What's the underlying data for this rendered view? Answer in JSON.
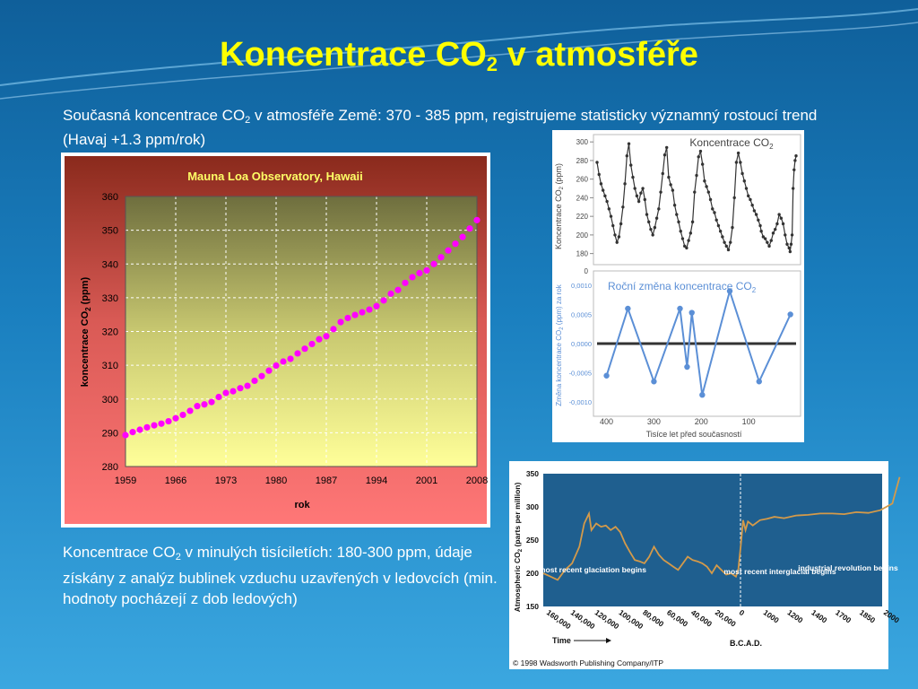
{
  "slide": {
    "title_main": "Koncentrace CO",
    "title_sub": "2",
    "title_rest": " v atmosféře",
    "intro_a": "Současná koncentrace CO",
    "intro_sub": "2",
    "intro_b": " v atmosféře Země: 370 - 385 ppm, registrujeme statisticky významný rostoucí trend (Havaj +1.3 ppm/rok)",
    "caption_a": "Koncentrace CO",
    "caption_sub": "2",
    "caption_b": " v minulých tisíciletích: 180-300 ppm, údaje získány z analýz bublinek vzduchu uzavřených v ledovcích (min. hodnoty pocházejí z dob ledových)"
  },
  "colors": {
    "title": "#ffff00",
    "mauna_points": "#ff00ff",
    "vostok_line": "#333333",
    "rate_line": "#5b8fd6",
    "historic_line": "#d49a4a",
    "historic_bg": "#1f5f8f"
  },
  "chart_data": [
    {
      "type": "line",
      "title": "Mauna Loa Observatory, Hawaii",
      "xlabel": "rok",
      "ylabel_a": "koncentrace CO",
      "ylabel_sub": "2",
      "ylabel_b": " (ppm)",
      "xlim": [
        1959,
        2008
      ],
      "ylim": [
        280,
        360
      ],
      "xticks": [
        "1959",
        "1966",
        "1973",
        "1980",
        "1987",
        "1994",
        "2001",
        "2008"
      ],
      "yticks": [
        "280",
        "290",
        "300",
        "310",
        "320",
        "330",
        "340",
        "350",
        "360"
      ],
      "grid": true,
      "x": [
        1959,
        1960,
        1961,
        1962,
        1963,
        1964,
        1965,
        1966,
        1967,
        1968,
        1969,
        1970,
        1971,
        1972,
        1973,
        1974,
        1975,
        1976,
        1977,
        1978,
        1979,
        1980,
        1981,
        1982,
        1983,
        1984,
        1985,
        1986,
        1987,
        1988,
        1989,
        1990,
        1991,
        1992,
        1993,
        1994,
        1995,
        1996,
        1997,
        1998,
        1999,
        2000,
        2001,
        2002,
        2003,
        2004,
        2005,
        2006,
        2007,
        2008
      ],
      "y": [
        289.3,
        290.2,
        290.9,
        291.6,
        292.2,
        292.7,
        293.4,
        294.3,
        295.3,
        296.5,
        297.9,
        298.4,
        299.1,
        300.6,
        301.8,
        302.3,
        303.2,
        303.9,
        305.4,
        306.8,
        308.4,
        309.9,
        311.1,
        311.9,
        313.5,
        314.9,
        316.3,
        317.7,
        318.6,
        320.7,
        322.8,
        324.0,
        324.9,
        325.7,
        326.5,
        327.5,
        329.2,
        331.2,
        332.3,
        334.4,
        336.1,
        337.3,
        338.1,
        340.0,
        342.0,
        344.0,
        346.0,
        348.0,
        350.5,
        353.0
      ]
    },
    {
      "type": "line",
      "title_a": "Koncentrace CO",
      "title_sub": "2",
      "ylabel_a": "Koncentrace CO",
      "ylabel_sub": "2",
      "ylabel_b": " (ppm)",
      "xlim": [
        400,
        0
      ],
      "ylim": [
        170,
        305
      ],
      "yticks": [
        "300",
        "280",
        "260",
        "240",
        "220",
        "200",
        "180"
      ],
      "grid": false,
      "x": [
        400,
        396,
        392,
        388,
        384,
        380,
        376,
        372,
        368,
        364,
        360,
        356,
        352,
        348,
        344,
        340,
        336,
        332,
        328,
        324,
        320,
        316,
        312,
        308,
        304,
        300,
        296,
        292,
        288,
        284,
        280,
        276,
        272,
        268,
        264,
        260,
        256,
        252,
        248,
        244,
        240,
        236,
        232,
        228,
        224,
        220,
        216,
        212,
        208,
        204,
        200,
        196,
        192,
        188,
        184,
        180,
        176,
        172,
        168,
        164,
        160,
        156,
        152,
        148,
        144,
        140,
        136,
        132,
        128,
        124,
        120,
        116,
        112,
        108,
        104,
        100,
        96,
        92,
        88,
        84,
        80,
        76,
        72,
        70,
        66,
        62,
        58,
        54,
        50,
        46,
        42,
        38,
        34,
        30,
        26,
        22,
        18,
        14,
        12,
        10,
        8,
        6,
        4,
        2,
        0
      ],
      "y": [
        278,
        265,
        255,
        248,
        242,
        236,
        228,
        220,
        210,
        200,
        192,
        198,
        212,
        230,
        255,
        285,
        298,
        275,
        262,
        250,
        242,
        236,
        245,
        250,
        238,
        222,
        214,
        206,
        200,
        208,
        218,
        228,
        246,
        266,
        286,
        294,
        262,
        254,
        248,
        232,
        222,
        214,
        204,
        196,
        188,
        186,
        194,
        202,
        214,
        246,
        264,
        284,
        290,
        276,
        258,
        252,
        246,
        238,
        228,
        224,
        216,
        210,
        204,
        198,
        192,
        188,
        184,
        192,
        208,
        240,
        278,
        288,
        278,
        266,
        258,
        250,
        242,
        238,
        232,
        226,
        222,
        216,
        210,
        204,
        198,
        196,
        192,
        188,
        194,
        202,
        206,
        212,
        222,
        218,
        212,
        200,
        190,
        186,
        182,
        190,
        200,
        250,
        270,
        280,
        285
      ]
    },
    {
      "type": "line",
      "title_a": "Roční změna koncentrace CO",
      "title_sub": "2",
      "ylabel_a": "Změna koncentrace CO",
      "ylabel_sub": "2",
      "ylabel_b": " (ppm) za rok",
      "xlabel": "Tisíce let před současností",
      "xlim": [
        420,
        0
      ],
      "ylim": [
        -0.0012,
        0.0012
      ],
      "top_axis_label": "0",
      "xticks": [
        "400",
        "300",
        "200",
        "100"
      ],
      "xtick_values": [
        400,
        300,
        200,
        100
      ],
      "yticks": [
        "0,0010",
        "0,0005",
        "0,0000",
        "-0,0005",
        "-0,0010"
      ],
      "ytick_values": [
        0.001,
        0.0005,
        0,
        -0.0005,
        -0.001
      ],
      "x": [
        400,
        355,
        300,
        245,
        230,
        220,
        198,
        140,
        78,
        12
      ],
      "y": [
        -0.00055,
        0.0006,
        -0.00065,
        0.0006,
        -0.0004,
        0.00053,
        -0.00088,
        0.0009,
        -0.00065,
        0.0005
      ]
    },
    {
      "type": "line",
      "ylabel_a": "Atmospheric CO",
      "ylabel_sub": "2",
      "ylabel_b": " (parts per million)",
      "xlabel": "Time",
      "ylim": [
        150,
        350
      ],
      "yticks": [
        "350",
        "300",
        "250",
        "200",
        "150"
      ],
      "ytick_values": [
        350,
        300,
        250,
        200,
        150
      ],
      "xticks": [
        "160,000",
        "140,000",
        "120,000",
        "100,000",
        "80,000",
        "60,000",
        "40,000",
        "20,000",
        "0",
        "1000",
        "1200",
        "1400",
        "1700",
        "1850",
        "2000"
      ],
      "bc_ad_label": "B.C.",
      "ad_label": "A.D.",
      "annotations": [
        "most recent glaciation begins",
        "most recent interglacial begins",
        "industrial revolution begins"
      ],
      "copyright": "© 1998 Wadsworth Publishing Company/ITP",
      "x_index": [
        0,
        0.3,
        0.6,
        0.9,
        1.2,
        1.5,
        1.7,
        1.9,
        2.0,
        2.2,
        2.4,
        2.6,
        2.8,
        3.0,
        3.2,
        3.4,
        3.6,
        3.8,
        4.0,
        4.2,
        4.4,
        4.6,
        4.8,
        5.0,
        5.2,
        5.4,
        5.6,
        5.8,
        6.0,
        6.2,
        6.4,
        6.6,
        6.8,
        7.0,
        7.2,
        7.4,
        7.6,
        7.8,
        8.0,
        8.1,
        8.2,
        8.3,
        8.4,
        8.5,
        8.7,
        9.0,
        9.3,
        9.6,
        10,
        10.5,
        11,
        11.5,
        12,
        12.5,
        13,
        13.5,
        14,
        14.5,
        14.8
      ],
      "y": [
        200,
        195,
        190,
        205,
        215,
        240,
        275,
        290,
        265,
        275,
        270,
        272,
        265,
        270,
        262,
        245,
        232,
        220,
        218,
        215,
        225,
        240,
        228,
        220,
        215,
        210,
        205,
        215,
        225,
        220,
        218,
        215,
        210,
        200,
        212,
        205,
        198,
        200,
        195,
        205,
        240,
        280,
        265,
        278,
        272,
        280,
        282,
        285,
        283,
        287,
        288,
        290,
        290,
        289,
        292,
        291,
        295,
        305,
        345
      ]
    }
  ]
}
